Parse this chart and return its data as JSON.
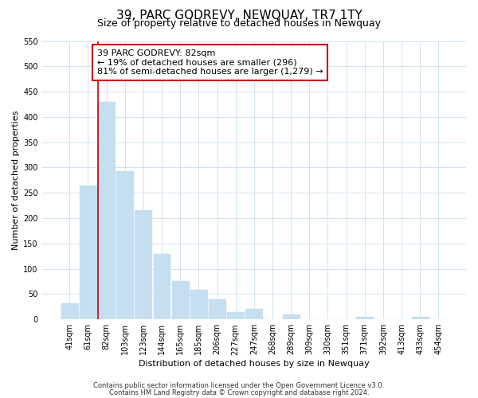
{
  "title": "39, PARC GODREVY, NEWQUAY, TR7 1TY",
  "subtitle": "Size of property relative to detached houses in Newquay",
  "xlabel": "Distribution of detached houses by size in Newquay",
  "ylabel": "Number of detached properties",
  "bar_labels": [
    "41sqm",
    "61sqm",
    "82sqm",
    "103sqm",
    "123sqm",
    "144sqm",
    "165sqm",
    "185sqm",
    "206sqm",
    "227sqm",
    "247sqm",
    "268sqm",
    "289sqm",
    "309sqm",
    "330sqm",
    "351sqm",
    "371sqm",
    "392sqm",
    "413sqm",
    "433sqm",
    "454sqm"
  ],
  "bar_values": [
    32,
    265,
    430,
    293,
    215,
    130,
    76,
    59,
    40,
    15,
    20,
    0,
    10,
    0,
    0,
    0,
    5,
    0,
    0,
    5,
    0
  ],
  "bar_color": "#c5dff0",
  "highlight_bar_index": 2,
  "highlight_line_color": "#cc0000",
  "annotation_line1": "39 PARC GODREVY: 82sqm",
  "annotation_line2": "← 19% of detached houses are smaller (296)",
  "annotation_line3": "81% of semi-detached houses are larger (1,279) →",
  "annotation_box_color": "#ffffff",
  "annotation_box_edge_color": "#cc0000",
  "ylim": [
    0,
    550
  ],
  "yticks": [
    0,
    50,
    100,
    150,
    200,
    250,
    300,
    350,
    400,
    450,
    500,
    550
  ],
  "footer1": "Contains HM Land Registry data © Crown copyright and database right 2024.",
  "footer2": "Contains public sector information licensed under the Open Government Licence v3.0.",
  "background_color": "#ffffff",
  "grid_color": "#d0e4f0",
  "title_fontsize": 11,
  "subtitle_fontsize": 9,
  "axis_label_fontsize": 8,
  "tick_fontsize": 7,
  "annotation_fontsize": 8,
  "footer_fontsize": 6
}
